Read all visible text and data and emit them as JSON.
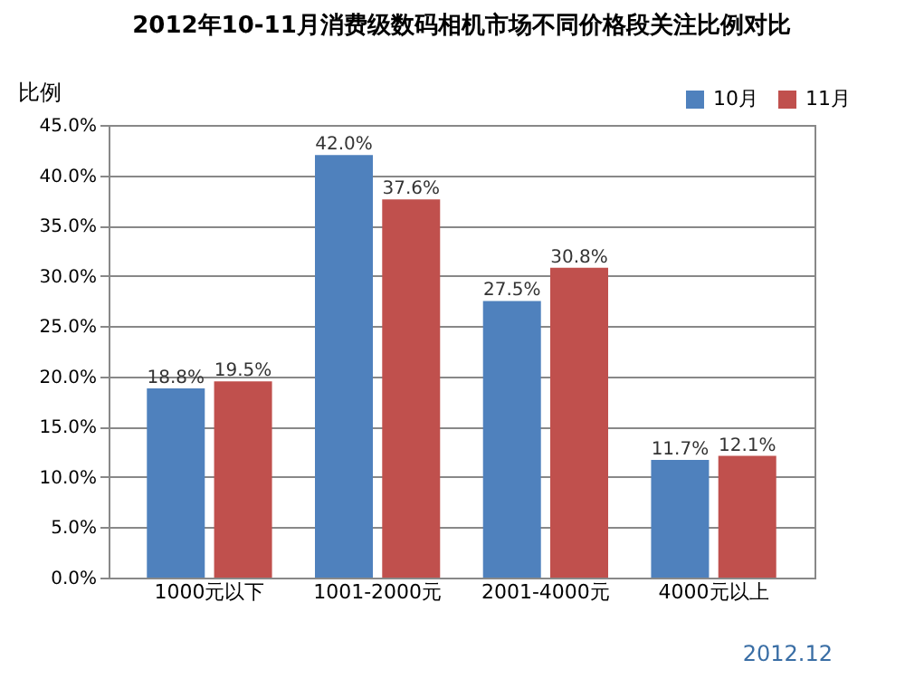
{
  "chart_data": {
    "type": "bar",
    "title": "2012年10-11月消费级数码相机市场不同价格段关注比例对比",
    "ylabel": "比例",
    "categories": [
      "1000元以下",
      "1001-2000元",
      "2001-4000元",
      "4000元以上"
    ],
    "series": [
      {
        "name": "10月",
        "color": "#4f81bd",
        "values": [
          18.8,
          42.0,
          27.5,
          11.7
        ],
        "value_labels": [
          "18.8%",
          "42.0%",
          "27.5%",
          "11.7%"
        ]
      },
      {
        "name": "11月",
        "color": "#c0504d",
        "values": [
          19.5,
          37.6,
          30.8,
          12.1
        ],
        "value_labels": [
          "19.5%",
          "37.6%",
          "30.8%",
          "12.1%"
        ]
      }
    ],
    "ylim": [
      0,
      45
    ],
    "yticks": [
      {
        "value": 0,
        "label": "0.0%"
      },
      {
        "value": 5,
        "label": "5.0%"
      },
      {
        "value": 10,
        "label": "10.0%"
      },
      {
        "value": 15,
        "label": "15.0%"
      },
      {
        "value": 20,
        "label": "20.0%"
      },
      {
        "value": 25,
        "label": "25.0%"
      },
      {
        "value": 30,
        "label": "30.0%"
      },
      {
        "value": 35,
        "label": "35.0%"
      },
      {
        "value": 40,
        "label": "40.0%"
      },
      {
        "value": 45,
        "label": "45.0%"
      }
    ],
    "grid": "y",
    "legend": "top right",
    "annotations": [
      "2012.12"
    ]
  }
}
